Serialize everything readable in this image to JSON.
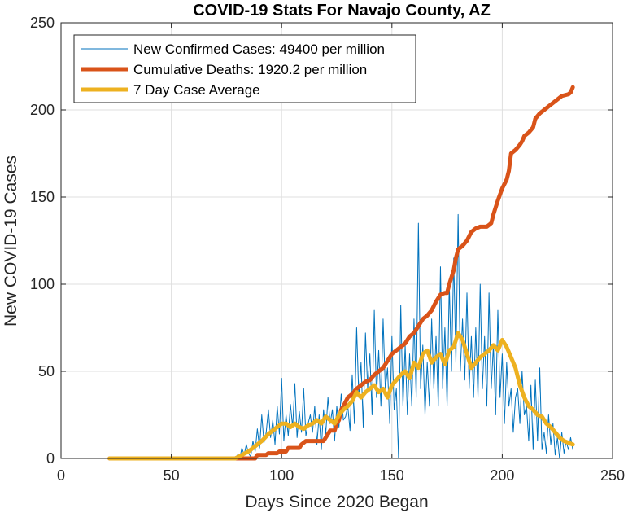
{
  "chart_data": {
    "type": "line",
    "title": "COVID-19 Stats For Navajo County, AZ",
    "xlabel": "Days Since 2020 Began",
    "ylabel": "New COVID-19 Cases",
    "xlim": [
      0,
      250
    ],
    "ylim": [
      0,
      250
    ],
    "xticks": [
      0,
      50,
      100,
      150,
      200,
      250
    ],
    "yticks": [
      0,
      50,
      100,
      150,
      200,
      250
    ],
    "grid": true,
    "legend_position": "top-left",
    "series": [
      {
        "name": "New Confirmed Cases: 49400 per million",
        "color": "#0072BD",
        "width": 1,
        "points": [
          [
            22,
            0
          ],
          [
            40,
            0
          ],
          [
            60,
            0
          ],
          [
            79,
            0
          ],
          [
            80,
            2
          ],
          [
            81,
            0
          ],
          [
            82,
            6
          ],
          [
            83,
            2
          ],
          [
            84,
            8
          ],
          [
            85,
            3
          ],
          [
            86,
            1
          ],
          [
            87,
            10
          ],
          [
            88,
            4
          ],
          [
            89,
            17
          ],
          [
            90,
            6
          ],
          [
            91,
            25
          ],
          [
            92,
            9
          ],
          [
            93,
            15
          ],
          [
            94,
            28
          ],
          [
            95,
            12
          ],
          [
            96,
            22
          ],
          [
            97,
            8
          ],
          [
            98,
            30
          ],
          [
            99,
            14
          ],
          [
            100,
            46
          ],
          [
            101,
            10
          ],
          [
            102,
            25
          ],
          [
            103,
            13
          ],
          [
            104,
            31
          ],
          [
            105,
            18
          ],
          [
            106,
            43
          ],
          [
            107,
            12
          ],
          [
            108,
            27
          ],
          [
            109,
            15
          ],
          [
            110,
            40
          ],
          [
            111,
            13
          ],
          [
            112,
            20
          ],
          [
            113,
            25
          ],
          [
            114,
            15
          ],
          [
            115,
            30
          ],
          [
            116,
            8
          ],
          [
            117,
            25
          ],
          [
            118,
            5
          ],
          [
            119,
            28
          ],
          [
            120,
            14
          ],
          [
            121,
            35
          ],
          [
            122,
            20
          ],
          [
            123,
            28
          ],
          [
            124,
            10
          ],
          [
            125,
            30
          ],
          [
            126,
            18
          ],
          [
            127,
            37
          ],
          [
            128,
            22
          ],
          [
            129,
            24
          ],
          [
            130,
            30
          ],
          [
            131,
            16
          ],
          [
            132,
            48
          ],
          [
            133,
            20
          ],
          [
            134,
            75
          ],
          [
            135,
            35
          ],
          [
            136,
            55
          ],
          [
            137,
            18
          ],
          [
            138,
            72
          ],
          [
            139,
            40
          ],
          [
            140,
            60
          ],
          [
            141,
            25
          ],
          [
            142,
            85
          ],
          [
            143,
            35
          ],
          [
            144,
            62
          ],
          [
            145,
            30
          ],
          [
            146,
            80
          ],
          [
            147,
            40
          ],
          [
            148,
            52
          ],
          [
            149,
            20
          ],
          [
            150,
            70
          ],
          [
            151,
            28
          ],
          [
            152,
            40
          ],
          [
            153,
            0
          ],
          [
            154,
            88
          ],
          [
            155,
            30
          ],
          [
            156,
            65
          ],
          [
            157,
            25
          ],
          [
            158,
            60
          ],
          [
            159,
            30
          ],
          [
            160,
            80
          ],
          [
            161,
            35
          ],
          [
            162,
            135
          ],
          [
            163,
            40
          ],
          [
            164,
            65
          ],
          [
            165,
            25
          ],
          [
            166,
            55
          ],
          [
            167,
            30
          ],
          [
            168,
            80
          ],
          [
            169,
            40
          ],
          [
            170,
            70
          ],
          [
            171,
            30
          ],
          [
            172,
            110
          ],
          [
            173,
            40
          ],
          [
            174,
            75
          ],
          [
            175,
            30
          ],
          [
            176,
            100
          ],
          [
            177,
            50
          ],
          [
            178,
            115
          ],
          [
            179,
            55
          ],
          [
            180,
            140
          ],
          [
            181,
            50
          ],
          [
            182,
            80
          ],
          [
            183,
            45
          ],
          [
            184,
            95
          ],
          [
            185,
            40
          ],
          [
            186,
            70
          ],
          [
            187,
            35
          ],
          [
            188,
            75
          ],
          [
            189,
            35
          ],
          [
            190,
            100
          ],
          [
            191,
            40
          ],
          [
            192,
            70
          ],
          [
            193,
            30
          ],
          [
            194,
            95
          ],
          [
            195,
            40
          ],
          [
            196,
            65
          ],
          [
            197,
            25
          ],
          [
            198,
            85
          ],
          [
            199,
            35
          ],
          [
            200,
            60
          ],
          [
            201,
            20
          ],
          [
            202,
            55
          ],
          [
            203,
            30
          ],
          [
            204,
            40
          ],
          [
            205,
            15
          ],
          [
            206,
            35
          ],
          [
            207,
            40
          ],
          [
            208,
            20
          ],
          [
            209,
            50
          ],
          [
            210,
            25
          ],
          [
            211,
            30
          ],
          [
            212,
            10
          ],
          [
            213,
            42
          ],
          [
            214,
            5
          ],
          [
            215,
            45
          ],
          [
            216,
            10
          ],
          [
            217,
            52
          ],
          [
            218,
            5
          ],
          [
            219,
            15
          ],
          [
            220,
            3
          ],
          [
            221,
            25
          ],
          [
            222,
            8
          ],
          [
            223,
            20
          ],
          [
            224,
            2
          ],
          [
            225,
            12
          ],
          [
            226,
            0
          ],
          [
            227,
            15
          ],
          [
            228,
            3
          ],
          [
            229,
            10
          ],
          [
            230,
            5
          ],
          [
            231,
            12
          ],
          [
            232,
            5
          ]
        ]
      },
      {
        "name": "Cumulative Deaths: 1920.2 per million",
        "color": "#D95319",
        "width": 5,
        "points": [
          [
            22,
            0
          ],
          [
            88,
            0
          ],
          [
            89,
            2
          ],
          [
            93,
            2
          ],
          [
            94,
            3
          ],
          [
            98,
            3
          ],
          [
            99,
            4
          ],
          [
            102,
            4
          ],
          [
            103,
            6
          ],
          [
            108,
            6
          ],
          [
            109,
            8
          ],
          [
            111,
            10
          ],
          [
            119,
            10
          ],
          [
            120,
            12
          ],
          [
            121,
            14
          ],
          [
            122,
            16
          ],
          [
            124,
            16
          ],
          [
            125,
            20
          ],
          [
            126,
            22
          ],
          [
            127,
            28
          ],
          [
            128,
            30
          ],
          [
            130,
            35
          ],
          [
            132,
            37
          ],
          [
            134,
            40
          ],
          [
            136,
            42
          ],
          [
            138,
            44
          ],
          [
            140,
            45
          ],
          [
            142,
            48
          ],
          [
            144,
            50
          ],
          [
            146,
            52
          ],
          [
            148,
            56
          ],
          [
            150,
            60
          ],
          [
            152,
            62
          ],
          [
            154,
            64
          ],
          [
            156,
            66
          ],
          [
            158,
            70
          ],
          [
            160,
            72
          ],
          [
            162,
            76
          ],
          [
            164,
            80
          ],
          [
            166,
            82
          ],
          [
            168,
            85
          ],
          [
            170,
            90
          ],
          [
            172,
            94
          ],
          [
            174,
            95
          ],
          [
            175,
            95
          ],
          [
            176,
            100
          ],
          [
            178,
            108
          ],
          [
            179,
            115
          ],
          [
            180,
            120
          ],
          [
            182,
            122
          ],
          [
            184,
            125
          ],
          [
            186,
            130
          ],
          [
            188,
            132
          ],
          [
            190,
            133
          ],
          [
            193,
            133
          ],
          [
            194,
            134
          ],
          [
            195,
            135
          ],
          [
            196,
            140
          ],
          [
            198,
            148
          ],
          [
            200,
            155
          ],
          [
            202,
            160
          ],
          [
            203,
            165
          ],
          [
            204,
            175
          ],
          [
            206,
            177
          ],
          [
            208,
            180
          ],
          [
            209,
            182
          ],
          [
            210,
            185
          ],
          [
            212,
            187
          ],
          [
            214,
            190
          ],
          [
            215,
            195
          ],
          [
            217,
            198
          ],
          [
            219,
            200
          ],
          [
            221,
            202
          ],
          [
            223,
            204
          ],
          [
            225,
            206
          ],
          [
            227,
            208
          ],
          [
            230,
            209
          ],
          [
            231,
            210
          ],
          [
            232,
            213
          ]
        ]
      },
      {
        "name": "7 Day Case Average",
        "color": "#EDB120",
        "width": 5,
        "points": [
          [
            22,
            0
          ],
          [
            79,
            0
          ],
          [
            82,
            2
          ],
          [
            85,
            4
          ],
          [
            88,
            7
          ],
          [
            91,
            10
          ],
          [
            94,
            14
          ],
          [
            97,
            17
          ],
          [
            100,
            20
          ],
          [
            102,
            20
          ],
          [
            104,
            18
          ],
          [
            106,
            20
          ],
          [
            108,
            18
          ],
          [
            110,
            17
          ],
          [
            112,
            19
          ],
          [
            114,
            20
          ],
          [
            116,
            22
          ],
          [
            118,
            20
          ],
          [
            120,
            24
          ],
          [
            122,
            22
          ],
          [
            124,
            20
          ],
          [
            126,
            25
          ],
          [
            128,
            28
          ],
          [
            130,
            30
          ],
          [
            132,
            33
          ],
          [
            134,
            38
          ],
          [
            136,
            35
          ],
          [
            138,
            38
          ],
          [
            140,
            40
          ],
          [
            142,
            42
          ],
          [
            144,
            38
          ],
          [
            146,
            40
          ],
          [
            148,
            35
          ],
          [
            150,
            42
          ],
          [
            152,
            45
          ],
          [
            154,
            48
          ],
          [
            156,
            50
          ],
          [
            158,
            46
          ],
          [
            160,
            55
          ],
          [
            162,
            52
          ],
          [
            164,
            60
          ],
          [
            166,
            62
          ],
          [
            168,
            55
          ],
          [
            170,
            58
          ],
          [
            172,
            60
          ],
          [
            174,
            54
          ],
          [
            176,
            62
          ],
          [
            178,
            64
          ],
          [
            180,
            72
          ],
          [
            182,
            68
          ],
          [
            184,
            60
          ],
          [
            186,
            52
          ],
          [
            188,
            55
          ],
          [
            190,
            58
          ],
          [
            192,
            60
          ],
          [
            194,
            62
          ],
          [
            196,
            65
          ],
          [
            198,
            62
          ],
          [
            200,
            68
          ],
          [
            202,
            64
          ],
          [
            204,
            58
          ],
          [
            206,
            52
          ],
          [
            208,
            42
          ],
          [
            210,
            35
          ],
          [
            212,
            30
          ],
          [
            214,
            28
          ],
          [
            216,
            25
          ],
          [
            218,
            24
          ],
          [
            220,
            20
          ],
          [
            222,
            18
          ],
          [
            224,
            15
          ],
          [
            226,
            12
          ],
          [
            228,
            10
          ],
          [
            230,
            9
          ],
          [
            232,
            8
          ]
        ]
      }
    ]
  }
}
